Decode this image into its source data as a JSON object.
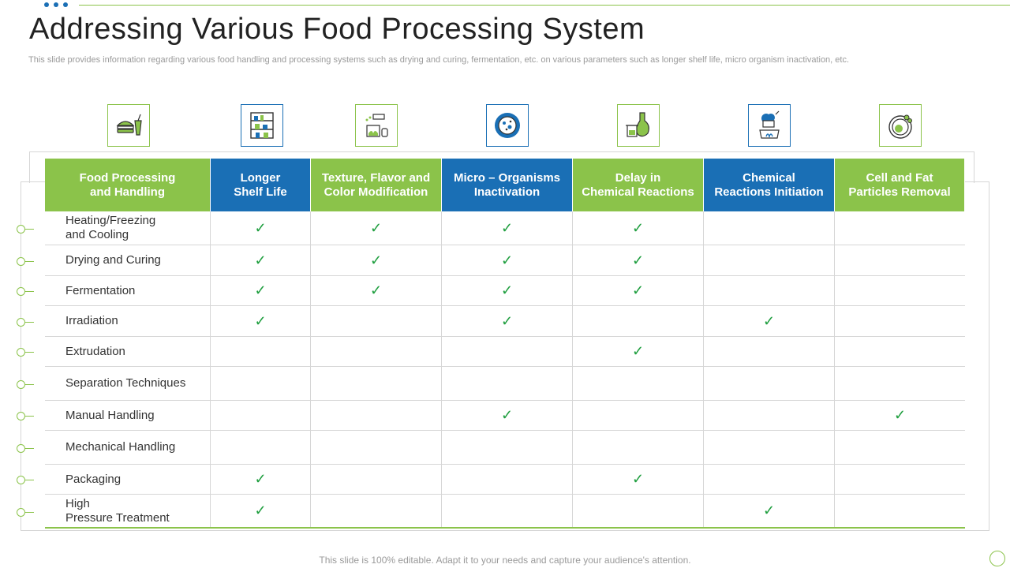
{
  "title": "Addressing Various Food Processing System",
  "subtitle": "This slide provides information regarding various food handling and processing systems such as drying and curing, fermentation, etc. on various parameters such as longer shelf life, micro organism inactivation, etc.",
  "icons": [
    "burger-meal-icon",
    "shelf-rack-icon",
    "spray-bottle-icon",
    "microorganism-petri-icon",
    "chemistry-flask-icon",
    "chef-cooking-icon",
    "cell-particle-icon"
  ],
  "columns": [
    {
      "label": "Food Processing\nand Handling",
      "color": "#8bc34a"
    },
    {
      "label": "Longer\nShelf Life",
      "color": "#1a6fb5"
    },
    {
      "label": "Texture, Flavor and\nColor Modification",
      "color": "#8bc34a"
    },
    {
      "label": "Micro – Organisms\nInactivation",
      "color": "#1a6fb5"
    },
    {
      "label": "Delay in\nChemical Reactions",
      "color": "#8bc34a"
    },
    {
      "label": "Chemical\nReactions Initiation",
      "color": "#1a6fb5"
    },
    {
      "label": "Cell and Fat\nParticles Removal",
      "color": "#8bc34a"
    }
  ],
  "rows": [
    {
      "label": "Heating/Freezing\nand Cooling",
      "checks": [
        true,
        true,
        true,
        true,
        false,
        false
      ]
    },
    {
      "label": "Drying and Curing",
      "checks": [
        true,
        true,
        true,
        true,
        false,
        false
      ]
    },
    {
      "label": "Fermentation",
      "checks": [
        true,
        true,
        true,
        true,
        false,
        false
      ]
    },
    {
      "label": "Irradiation",
      "checks": [
        true,
        false,
        true,
        false,
        true,
        false
      ]
    },
    {
      "label": "Extrudation",
      "checks": [
        false,
        false,
        false,
        true,
        false,
        false
      ]
    },
    {
      "label": "Separation Techniques",
      "checks": [
        false,
        false,
        false,
        false,
        false,
        false
      ]
    },
    {
      "label": "Manual Handling",
      "checks": [
        false,
        false,
        true,
        false,
        false,
        true
      ]
    },
    {
      "label": "Mechanical Handling",
      "checks": [
        false,
        false,
        false,
        false,
        false,
        false
      ]
    },
    {
      "label": "Packaging",
      "checks": [
        true,
        false,
        false,
        true,
        false,
        false
      ]
    },
    {
      "label": "High\nPressure Treatment",
      "checks": [
        true,
        false,
        false,
        false,
        true,
        false
      ]
    }
  ],
  "check_mark": "✓",
  "footer": "This slide is 100% editable. Adapt it to your needs and capture your audience's attention."
}
